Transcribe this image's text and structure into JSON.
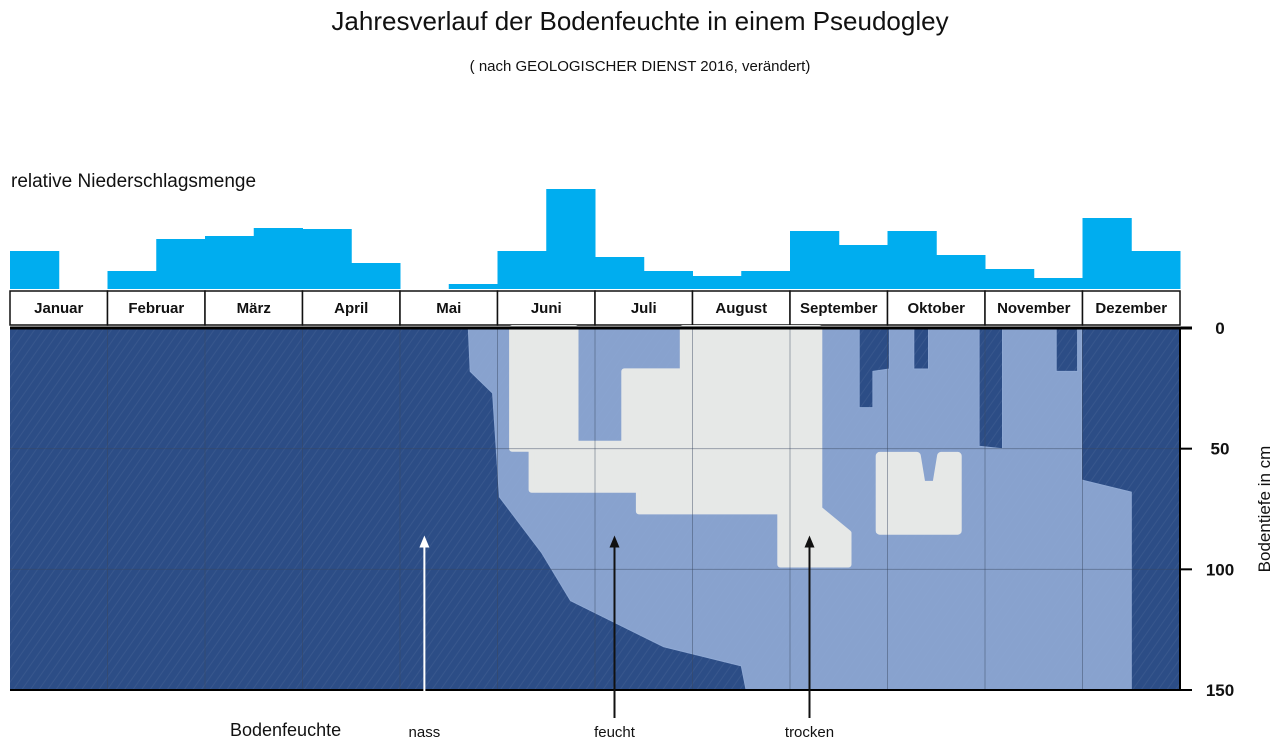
{
  "chart_data": {
    "type": "bar",
    "title": "Jahresverlauf der Bodenfeuchte in einem Pseudogley",
    "subtitle": "( nach GEOLOGISCHER DIENST 2016, verändert)",
    "precip_label": "relative Niederschlagsmenge",
    "categories": [
      "Januar",
      "Februar",
      "März",
      "April",
      "Mai",
      "Juni",
      "Juli",
      "August",
      "September",
      "Oktober",
      "November",
      "Dezember"
    ],
    "precip_half_month": [
      38,
      0,
      18,
      50,
      53,
      61,
      60,
      26,
      0,
      5,
      38,
      100,
      32,
      18,
      13,
      18,
      58,
      44,
      58,
      34,
      20,
      11,
      71,
      38
    ],
    "precip_max": 100,
    "colors": {
      "precip": "#00adef",
      "nass": "#2c4d86",
      "feucht": "#8fa9d4",
      "trocken": "#e6e8e7"
    },
    "ylabel": "Bodentiefe in cm",
    "y_ticks": [
      0,
      50,
      100,
      150
    ],
    "ylim": [
      0,
      150
    ],
    "moisture_zones": {
      "feucht": [
        [
          4.0,
          0
        ],
        [
          4.0,
          0
        ],
        [
          4.7,
          0
        ],
        [
          4.7,
          0
        ],
        [
          4.72,
          18
        ],
        [
          4.72,
          18
        ],
        [
          4.95,
          27
        ],
        [
          4.95,
          27
        ],
        [
          5.02,
          70
        ],
        [
          5.02,
          70
        ],
        [
          5.45,
          93
        ],
        [
          5.45,
          93
        ],
        [
          5.75,
          113
        ],
        [
          5.75,
          113
        ],
        [
          6.7,
          132
        ],
        [
          6.7,
          132
        ],
        [
          7.5,
          140
        ],
        [
          7.5,
          140
        ],
        [
          7.55,
          150
        ],
        [
          7.55,
          150
        ],
        [
          11.5,
          150
        ],
        [
          11.5,
          150
        ],
        [
          11.5,
          68
        ],
        [
          11.5,
          68
        ],
        [
          10.99,
          63
        ],
        [
          10.99,
          63
        ],
        [
          10.99,
          0
        ],
        [
          10.95,
          0
        ],
        [
          10.95,
          18
        ],
        [
          10.73,
          18
        ],
        [
          10.73,
          0
        ],
        [
          10.18,
          0
        ],
        [
          10.18,
          50
        ],
        [
          9.94,
          49
        ],
        [
          9.94,
          0
        ],
        [
          9.42,
          0
        ],
        [
          9.42,
          17
        ],
        [
          9.27,
          17
        ],
        [
          9.27,
          0
        ],
        [
          9.02,
          0
        ],
        [
          9.02,
          17
        ],
        [
          8.85,
          18
        ],
        [
          8.85,
          33
        ],
        [
          8.71,
          33
        ],
        [
          8.71,
          0
        ]
      ],
      "trocken": [
        [
          5.15,
          0
        ],
        [
          5.15,
          50
        ],
        [
          5.35,
          50
        ],
        [
          5.35,
          67
        ],
        [
          6.45,
          67
        ],
        [
          6.45,
          76
        ],
        [
          7.9,
          76
        ],
        [
          7.9,
          98
        ],
        [
          8.6,
          98
        ],
        [
          8.6,
          85
        ],
        [
          8.3,
          75
        ],
        [
          8.3,
          0
        ],
        [
          6.9,
          0
        ],
        [
          6.9,
          18
        ],
        [
          6.3,
          18
        ],
        [
          6.3,
          48
        ],
        [
          5.8,
          48
        ],
        [
          5.8,
          0
        ]
      ],
      "trocken_island": [
        [
          8.92,
          53
        ],
        [
          9.3,
          53
        ],
        [
          9.35,
          65
        ],
        [
          9.5,
          65
        ],
        [
          9.55,
          53
        ],
        [
          9.72,
          53
        ],
        [
          9.72,
          84
        ],
        [
          8.92,
          84
        ]
      ]
    },
    "legend": {
      "title": "Bodenfeuchte",
      "items": [
        {
          "label": "nass",
          "month_position": 4.25,
          "depth": 86
        },
        {
          "label": "feucht",
          "month_position": 6.2,
          "depth": 86
        },
        {
          "label": "trocken",
          "month_position": 8.2,
          "depth": 86
        }
      ]
    }
  }
}
